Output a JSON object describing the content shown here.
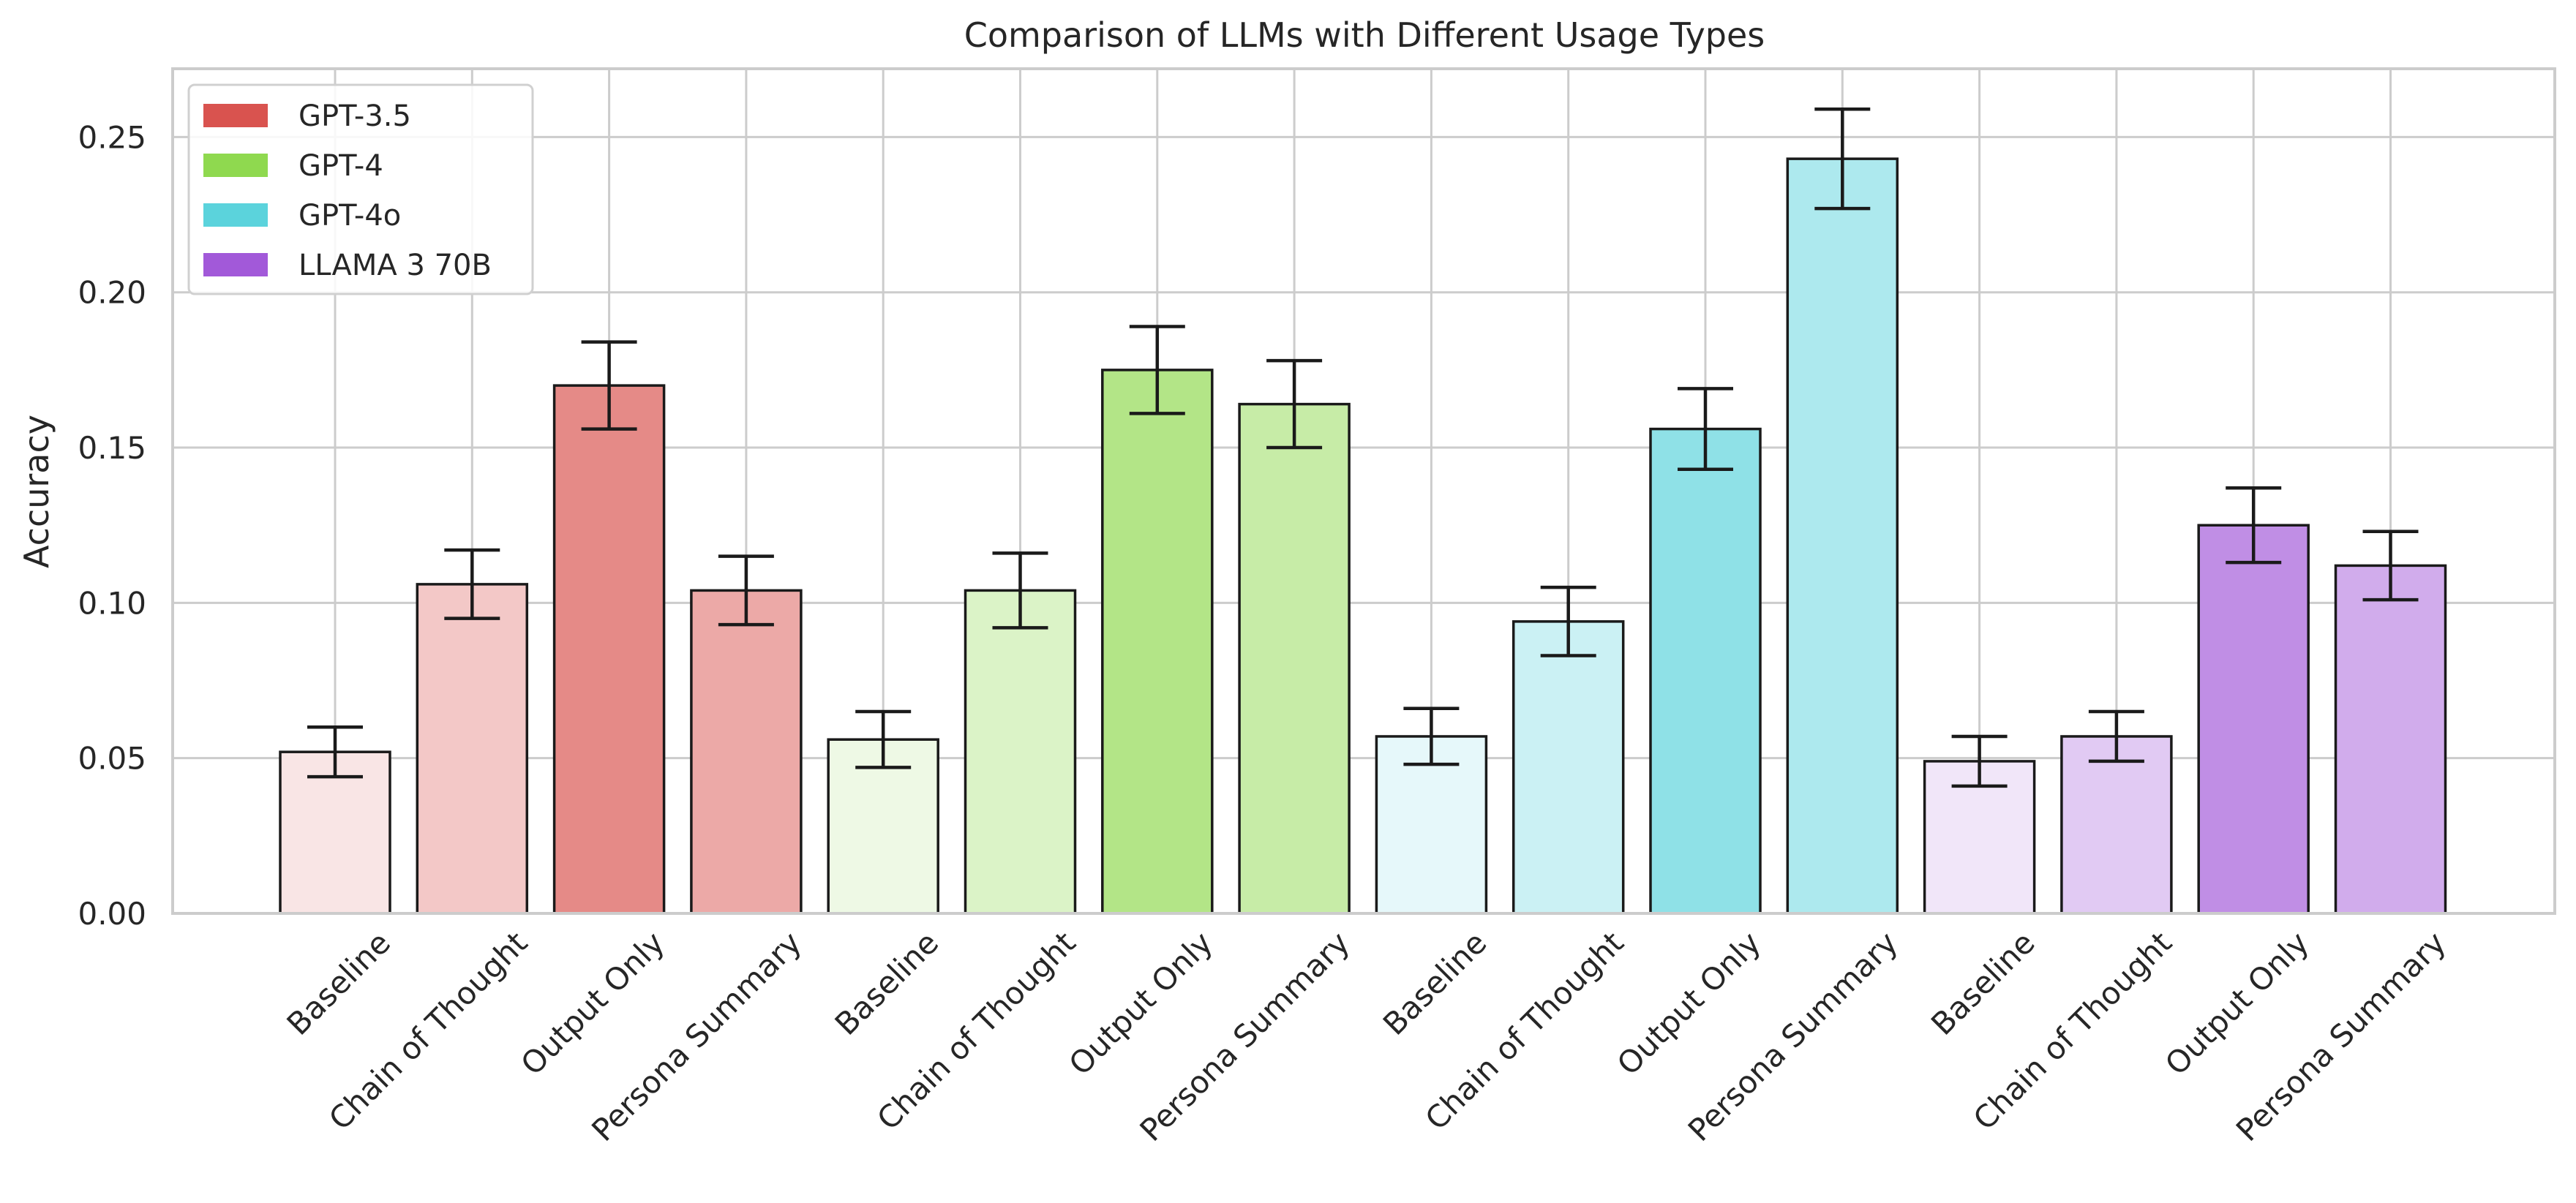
{
  "chart_data": {
    "type": "bar",
    "title": "Comparison of LLMs with Different Usage Types",
    "ylabel": "Accuracy",
    "xlabel": "",
    "ylim": [
      0,
      0.272
    ],
    "yticks": [
      "0.00",
      "0.05",
      "0.10",
      "0.15",
      "0.20",
      "0.25"
    ],
    "grid": true,
    "legend_position": "top-left",
    "usage_types": [
      "Baseline",
      "Chain of Thought",
      "Output Only",
      "Persona Summary"
    ],
    "series": [
      {
        "name": "GPT-3.5",
        "color": "#d9534f",
        "values": [
          0.052,
          0.106,
          0.17,
          0.104
        ],
        "errors": [
          0.008,
          0.011,
          0.014,
          0.011
        ]
      },
      {
        "name": "GPT-4",
        "color": "#8fd94f",
        "values": [
          0.056,
          0.104,
          0.175,
          0.164
        ],
        "errors": [
          0.009,
          0.012,
          0.014,
          0.014
        ]
      },
      {
        "name": "GPT-4o",
        "color": "#5bd3dc",
        "values": [
          0.057,
          0.094,
          0.156,
          0.243
        ],
        "errors": [
          0.009,
          0.011,
          0.013,
          0.016
        ]
      },
      {
        "name": "LLAMA 3 70B",
        "color": "#a259d9",
        "values": [
          0.049,
          0.057,
          0.125,
          0.112
        ],
        "errors": [
          0.008,
          0.008,
          0.012,
          0.011
        ]
      }
    ]
  }
}
